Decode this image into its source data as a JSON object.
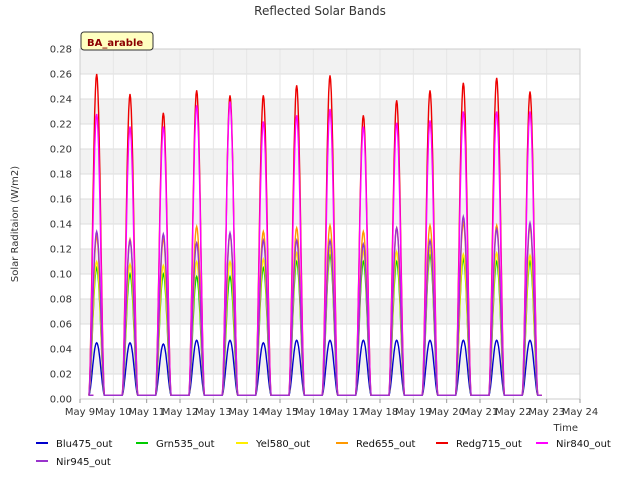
{
  "chart_data": {
    "type": "line",
    "title": "Reflected Solar Bands",
    "xlabel": "Time",
    "ylabel": "Solar Raditaion (W/m2)",
    "station_label": "BA_arable",
    "ylim": [
      0,
      0.28
    ],
    "yticks": [
      0.0,
      0.02,
      0.04,
      0.06,
      0.08,
      0.1,
      0.12,
      0.14,
      0.16,
      0.18,
      0.2,
      0.22,
      0.24,
      0.26,
      0.28
    ],
    "ytick_labels": [
      "0.00",
      "0.02",
      "0.04",
      "0.06",
      "0.08",
      "0.10",
      "0.12",
      "0.14",
      "0.16",
      "0.18",
      "0.20",
      "0.22",
      "0.24",
      "0.26",
      "0.28"
    ],
    "xlim": [
      9,
      24
    ],
    "xticks": [
      9,
      10,
      11,
      12,
      13,
      14,
      15,
      16,
      17,
      18,
      19,
      20,
      21,
      22,
      23,
      24
    ],
    "xtick_labels": [
      "May 9",
      "May 10",
      "May 11",
      "May 12",
      "May 13",
      "May 14",
      "May 15",
      "May 16",
      "May 17",
      "May 18",
      "May 19",
      "May 20",
      "May 21",
      "May 22",
      "May 23",
      "May 24"
    ],
    "grid": true,
    "legend_position": "bottom",
    "days": [
      10,
      11,
      12,
      13,
      14,
      15,
      16,
      17,
      18,
      19,
      20,
      21,
      22,
      23
    ],
    "series": [
      {
        "name": "Blu475_out",
        "color": "#0000cc",
        "daily_peaks": [
          0.045,
          0.045,
          0.044,
          0.047,
          0.047,
          0.045,
          0.047,
          0.047,
          0.047,
          0.047,
          0.047,
          0.047,
          0.047,
          0.047
        ]
      },
      {
        "name": "Grn535_out",
        "color": "#00cc00",
        "daily_peaks": [
          0.105,
          0.1,
          0.1,
          0.098,
          0.098,
          0.105,
          0.11,
          0.115,
          0.11,
          0.11,
          0.115,
          0.112,
          0.11,
          0.11
        ]
      },
      {
        "name": "Yel580_out",
        "color": "#ffee00",
        "daily_peaks": [
          0.11,
          0.108,
          0.107,
          0.11,
          0.11,
          0.112,
          0.117,
          0.12,
          0.118,
          0.118,
          0.12,
          0.116,
          0.117,
          0.115
        ]
      },
      {
        "name": "Red655_out",
        "color": "#ff9900",
        "daily_peaks": [
          0.13,
          0.128,
          0.128,
          0.138,
          0.132,
          0.134,
          0.137,
          0.139,
          0.134,
          0.137,
          0.139,
          0.141,
          0.139,
          0.138
        ]
      },
      {
        "name": "Redg715_out",
        "color": "#ee0000",
        "daily_peaks": [
          0.26,
          0.244,
          0.229,
          0.247,
          0.243,
          0.243,
          0.251,
          0.259,
          0.227,
          0.239,
          0.247,
          0.253,
          0.257,
          0.246
        ]
      },
      {
        "name": "Nir840_out",
        "color": "#ff00ff",
        "daily_peaks": [
          0.228,
          0.218,
          0.218,
          0.235,
          0.238,
          0.222,
          0.227,
          0.232,
          0.218,
          0.221,
          0.223,
          0.23,
          0.23,
          0.23
        ]
      },
      {
        "name": "Nir945_out",
        "color": "#9933cc",
        "daily_peaks": [
          0.134,
          0.127,
          0.132,
          0.125,
          0.133,
          0.127,
          0.127,
          0.127,
          0.124,
          0.137,
          0.127,
          0.146,
          0.136,
          0.141
        ]
      }
    ]
  }
}
